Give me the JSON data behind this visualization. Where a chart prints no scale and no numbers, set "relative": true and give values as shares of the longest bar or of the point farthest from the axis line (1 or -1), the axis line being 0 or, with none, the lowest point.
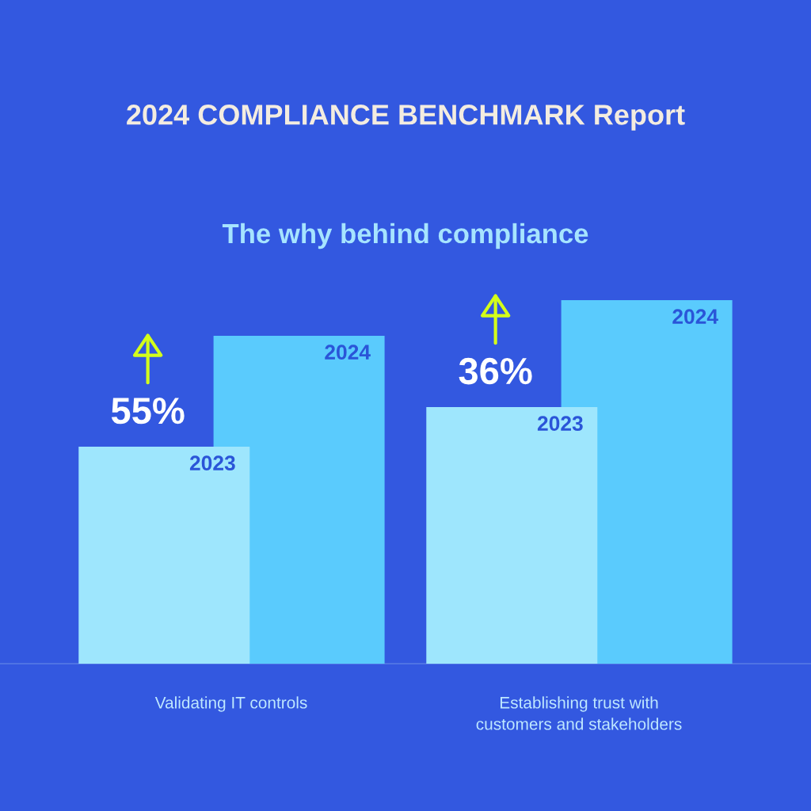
{
  "chart_data": {
    "type": "bar",
    "relative": true,
    "title": "The why behind compliance",
    "subtitle": "2024 COMPLIANCE BENCHMARK Report",
    "categories": [
      "Validating IT controls",
      "Establishing trust with\ncustomers and stakeholders"
    ],
    "series": [
      {
        "name": "2023",
        "color": "#9ee6fd",
        "values": [
          0.597,
          0.706
        ]
      },
      {
        "name": "2024",
        "color": "#5acbfd",
        "values": [
          0.902,
          1
        ]
      }
    ],
    "annotations": [
      "55%",
      "36%"
    ],
    "legend": false
  }
}
